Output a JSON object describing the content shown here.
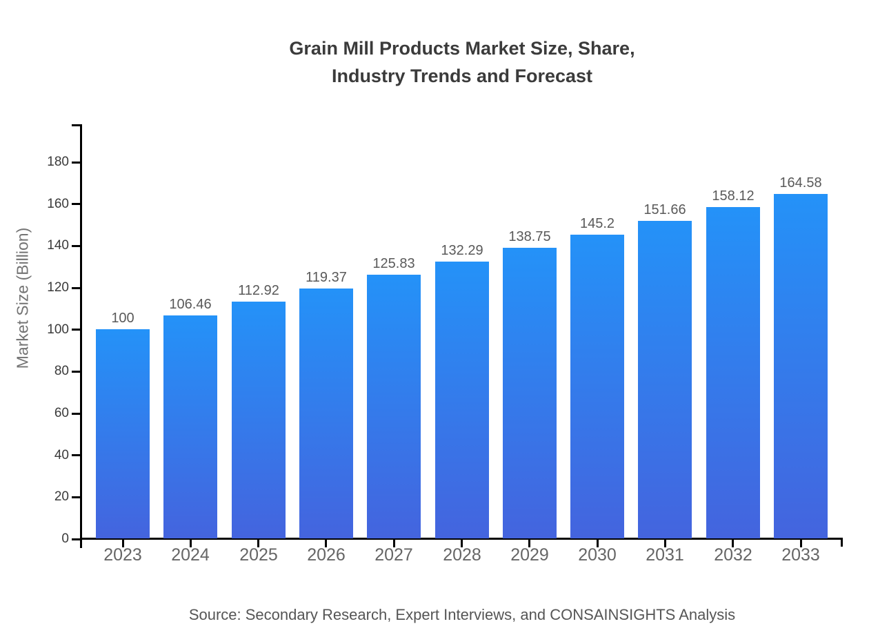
{
  "chart": {
    "title_lines": [
      "Grain Mill Products Market Size, Share,",
      "Industry Trends and Forecast"
    ],
    "ylabel": "Market Size (Billion)",
    "source_note": "Source: Secondary Research, Expert Interviews, and CONSAINSIGHTS Analysis"
  },
  "chart_data": {
    "type": "bar",
    "title": "Grain Mill Products Market Size, Share,\nIndustry Trends and Forecast",
    "categories": [
      "2023",
      "2024",
      "2025",
      "2026",
      "2027",
      "2028",
      "2029",
      "2030",
      "2031",
      "2032",
      "2033"
    ],
    "values": [
      100,
      106.46,
      112.92,
      119.37,
      125.83,
      132.29,
      138.75,
      145.2,
      151.66,
      158.12,
      164.58
    ],
    "value_labels": [
      "100",
      "106.46",
      "112.92",
      "119.37",
      "125.83",
      "132.29",
      "138.75",
      "145.2",
      "151.66",
      "158.12",
      "164.58"
    ],
    "xlabel": "",
    "ylabel": "Market Size (Billion)",
    "ylim": [
      0,
      198
    ],
    "yticks": [
      0,
      20,
      40,
      60,
      80,
      100,
      120,
      140,
      160,
      180
    ],
    "grid": false,
    "legend": null,
    "source_note": "Source: Secondary Research, Expert Interviews, and CONSAINSIGHTS Analysis",
    "colors": {
      "bar_gradient_top": "#2492f8",
      "bar_gradient_bottom": "#4464de",
      "axis": "#000000",
      "title_text": "#3b3b3b",
      "tick_text": "#3a3a3a",
      "category_text": "#666666",
      "value_text": "#595959",
      "axis_title_text": "#737373",
      "source_text": "#555555"
    }
  }
}
